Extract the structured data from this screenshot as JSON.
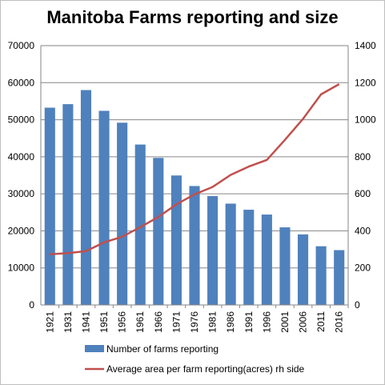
{
  "chart_data": {
    "type": "bar+line",
    "title": "Manitoba Farms reporting and size",
    "categories": [
      "1921",
      "1931",
      "1941",
      "1951",
      "1956",
      "1961",
      "1966",
      "1971",
      "1976",
      "1981",
      "1986",
      "1991",
      "1996",
      "2001",
      "2006",
      "2011",
      "2016"
    ],
    "series": [
      {
        "name": "Number of farms reporting",
        "type": "bar",
        "axis": "left",
        "color": "#4f81bd",
        "values": [
          53250,
          54200,
          58000,
          52400,
          49200,
          43300,
          39700,
          34950,
          32100,
          29400,
          27350,
          25700,
          24400,
          20950,
          19050,
          15850,
          14800
        ]
      },
      {
        "name": "Average area per farm reporting(acres) rh side",
        "type": "line",
        "axis": "right",
        "color": "#c0504d",
        "values": [
          274,
          280,
          291,
          338,
          368,
          420,
          475,
          543,
          597,
          637,
          702,
          747,
          783,
          891,
          1004,
          1137,
          1192
        ]
      }
    ],
    "y_left": {
      "min": 0,
      "max": 70000,
      "ticks": [
        "0",
        "10000",
        "20000",
        "30000",
        "40000",
        "50000",
        "60000",
        "70000"
      ]
    },
    "y_right": {
      "min": 0,
      "max": 1400,
      "ticks": [
        "0",
        "200",
        "400",
        "600",
        "800",
        "1000",
        "1200",
        "1400"
      ]
    },
    "grid": "horizontal",
    "legend_position": "bottom"
  }
}
